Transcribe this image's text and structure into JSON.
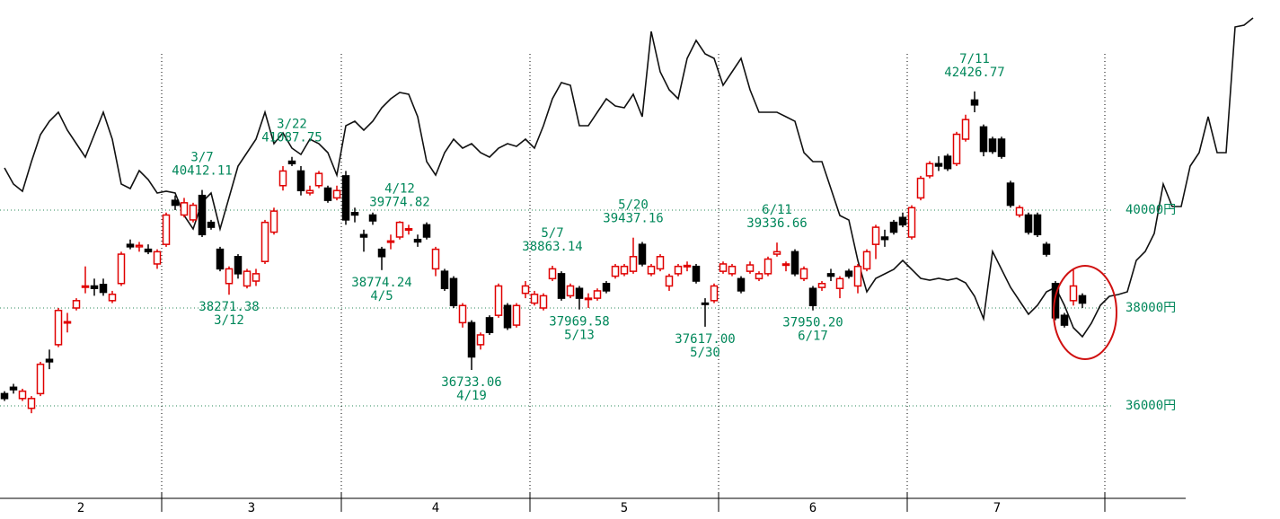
{
  "chart_data": {
    "type": "candlestick",
    "ylim": [
      34110,
      44294
    ],
    "yticks": [
      {
        "value": 36000,
        "label": "36000円"
      },
      {
        "value": 38000,
        "label": "38000円"
      },
      {
        "value": 40000,
        "label": "40000円"
      }
    ],
    "grid": true,
    "colors": {
      "up": "#e00000",
      "down": "#000000",
      "line": "#111111",
      "annotation": "#00875a",
      "grid": "#2a8a5a"
    },
    "months": [
      {
        "label": "2",
        "open": [
          36250,
          36380,
          36150,
          35950,
          36250,
          36950,
          37250,
          37700,
          38000,
          38450,
          38450,
          38480,
          38150,
          38500,
          39300,
          39250,
          39200,
          38900
        ],
        "high": [
          36300,
          36450,
          36350,
          36200,
          36900,
          37150,
          38000,
          37900,
          38200,
          38850,
          38600,
          38600,
          38350,
          39150,
          39400,
          39350,
          39300,
          39200
        ],
        "low": [
          36100,
          36250,
          36100,
          35850,
          36200,
          36750,
          37200,
          37500,
          37950,
          38300,
          38250,
          38250,
          38100,
          38450,
          39200,
          39150,
          39100,
          38800
        ],
        "close": [
          36150,
          36330,
          36300,
          36150,
          36850,
          36900,
          37950,
          37720,
          38150,
          38450,
          38400,
          38320,
          38280,
          39100,
          39250,
          39280,
          39150,
          39150
        ]
      },
      {
        "label": "3",
        "open": [
          39300,
          40200,
          39900,
          39800,
          40300,
          39750,
          39200,
          38500,
          39050,
          38450,
          38550,
          38950,
          39550,
          40500,
          41000,
          40800,
          40350,
          40500,
          40450,
          40250
        ],
        "high": [
          39950,
          40300,
          40250,
          40150,
          40412.11,
          39800,
          39250,
          38850,
          39100,
          38800,
          38800,
          39800,
          40050,
          40900,
          41087.75,
          40900,
          40500,
          40800,
          40500,
          40500
        ],
        "low": [
          39250,
          40000,
          39850,
          39750,
          39450,
          39600,
          38750,
          38271.38,
          38600,
          38400,
          38450,
          38900,
          39500,
          40400,
          40900,
          40300,
          40300,
          40450,
          40150,
          40200
        ],
        "close": [
          39900,
          40100,
          40150,
          40100,
          39500,
          39650,
          38800,
          38800,
          38700,
          38750,
          38700,
          39750,
          39980,
          40800,
          40950,
          40400,
          40400,
          40750,
          40200,
          40400
        ]
      },
      {
        "label": "4",
        "open": [
          40700,
          39950,
          39500,
          39900,
          39200,
          39350,
          39450,
          39600,
          39400,
          39700,
          38800,
          38750,
          38600,
          37700,
          37700,
          37250,
          37800,
          37850,
          38050,
          37650,
          38300
        ],
        "high": [
          40800,
          40050,
          39600,
          39950,
          39250,
          39500,
          39774.82,
          39700,
          39500,
          39750,
          39250,
          38800,
          38650,
          38100,
          37750,
          37500,
          37850,
          38500,
          38100,
          38100,
          38550
        ],
        "low": [
          39700,
          39750,
          39150,
          39700,
          38774.24,
          39200,
          39400,
          39500,
          39250,
          39400,
          38650,
          38350,
          38000,
          37600,
          36733.06,
          37150,
          37450,
          37800,
          37550,
          37600,
          38200
        ],
        "close": [
          39800,
          39900,
          39450,
          39780,
          39050,
          39370,
          39750,
          39620,
          39350,
          39450,
          39200,
          38400,
          38050,
          38050,
          37000,
          37450,
          37500,
          38450,
          37600,
          38050,
          38450
        ]
      },
      {
        "label": "5",
        "open": [
          38100,
          38000,
          38600,
          38700,
          38250,
          38400,
          38180,
          38200,
          38500,
          38650,
          38700,
          38750,
          39300,
          38700,
          38800,
          38450,
          38700,
          38850,
          38850,
          38100,
          38150
        ],
        "high": [
          38350,
          38300,
          38863.14,
          38750,
          38500,
          38450,
          38300,
          38400,
          38550,
          38900,
          38900,
          39437.16,
          39350,
          38900,
          39100,
          38700,
          38900,
          38950,
          38900,
          38200,
          38500
        ],
        "low": [
          38050,
          37950,
          38550,
          38150,
          38200,
          37969.58,
          38000,
          38150,
          38300,
          38600,
          38650,
          38700,
          38850,
          38650,
          38750,
          38350,
          38650,
          38750,
          38500,
          37617,
          38100
        ],
        "close": [
          38280,
          38250,
          38800,
          38200,
          38450,
          38200,
          38200,
          38350,
          38350,
          38850,
          38850,
          39050,
          38900,
          38850,
          39050,
          38650,
          38850,
          38870,
          38550,
          38080,
          38450
        ]
      },
      {
        "label": "6",
        "open": [
          38750,
          38700,
          38600,
          38750,
          38600,
          38700,
          39100,
          38880,
          39150,
          38600,
          38400,
          38420,
          38700,
          38400,
          38750,
          38450,
          38800,
          39300,
          39450,
          39750,
          39850
        ],
        "high": [
          38950,
          38900,
          38650,
          38950,
          38750,
          39050,
          39336.66,
          38950,
          39200,
          38850,
          38450,
          38550,
          38800,
          38650,
          38800,
          38900,
          39200,
          39700,
          39600,
          39800,
          39950
        ],
        "low": [
          38700,
          38650,
          38300,
          38700,
          38550,
          38650,
          39050,
          38750,
          38650,
          38550,
          37950.2,
          38350,
          38550,
          38200,
          38600,
          38300,
          38750,
          39000,
          39250,
          39500,
          39650
        ],
        "close": [
          38900,
          38850,
          38350,
          38880,
          38700,
          39000,
          39150,
          38900,
          38700,
          38800,
          38050,
          38500,
          38650,
          38600,
          38650,
          38850,
          39150,
          39650,
          39400,
          39550,
          39700
        ]
      },
      {
        "label": "7",
        "open": [
          39450,
          40250,
          40700,
          40950,
          41100,
          40950,
          41450,
          42250,
          41700,
          41450,
          41450,
          40550,
          39900,
          39900,
          39900,
          39300,
          38500,
          37850,
          38150,
          38250
        ],
        "high": [
          40100,
          40700,
          41000,
          41100,
          41150,
          41600,
          41950,
          42426.77,
          41750,
          41500,
          41500,
          40600,
          40100,
          39950,
          39950,
          39350,
          38550,
          37900,
          38800,
          38300
        ],
        "low": [
          39400,
          40200,
          40650,
          40800,
          40800,
          40900,
          41400,
          42000,
          41100,
          41150,
          41050,
          40050,
          39850,
          39500,
          39450,
          39050,
          37750,
          37600,
          38050,
          38000
        ],
        "close": [
          40050,
          40650,
          40950,
          40900,
          40850,
          41550,
          41850,
          42150,
          41200,
          41200,
          41100,
          40100,
          40050,
          39550,
          39500,
          39100,
          37800,
          37650,
          38450,
          38100
        ]
      }
    ],
    "line": {
      "values": [
        40863,
        40532,
        40386,
        40991,
        41542,
        41817,
        42000,
        41633,
        41358,
        41083,
        41542,
        42000,
        41450,
        40532,
        40441,
        40808,
        40624,
        40349,
        40386,
        40349,
        39890,
        39615,
        40165,
        40349,
        39615,
        40257,
        40899,
        41175,
        41450,
        42000,
        41358,
        41578,
        41266,
        41138,
        41450,
        41358,
        41175,
        40716,
        41725,
        41817,
        41633,
        41817,
        42092,
        42276,
        42404,
        42367,
        41909,
        40991,
        40716,
        41175,
        41450,
        41266,
        41358,
        41175,
        41083,
        41266,
        41358,
        41303,
        41450,
        41266,
        41725,
        42276,
        42606,
        42551,
        41725,
        41725,
        42000,
        42276,
        42129,
        42092,
        42367,
        41909,
        43652,
        42826,
        42459,
        42276,
        43101,
        43468,
        43193,
        43101,
        42551,
        42826,
        43101,
        42459,
        42000,
        42000,
        42000,
        41909,
        41817,
        41175,
        40991,
        40991,
        40441,
        39890,
        39798,
        38973,
        38330,
        38606,
        38697,
        38789,
        38973,
        38789,
        38606,
        38569,
        38606,
        38569,
        38606,
        38514,
        38239,
        37780,
        39156,
        38789,
        38422,
        38147,
        37872,
        38055,
        38330,
        38422,
        38055,
        37596,
        37413,
        37688,
        38055,
        38239,
        38275,
        38330,
        38973,
        39156,
        39523,
        40532,
        40074,
        40074,
        40899,
        41175,
        41909,
        41175,
        41175,
        43744,
        43780,
        43927
      ]
    },
    "annotations": [
      {
        "date": "3/7",
        "value": 40412.11
      },
      {
        "date": "3/12",
        "value": 38271.38
      },
      {
        "date": "3/22",
        "value": 41087.75
      },
      {
        "date": "4/5",
        "value": 38774.24
      },
      {
        "date": "4/12",
        "value": 39774.82
      },
      {
        "date": "4/19",
        "value": 36733.06
      },
      {
        "date": "5/7",
        "value": 38863.14
      },
      {
        "date": "5/13",
        "value": 37969.58
      },
      {
        "date": "5/20",
        "value": 39437.16
      },
      {
        "date": "5/30",
        "value": 37617,
        "label": "37617.00"
      },
      {
        "date": "6/11",
        "value": 39336.66
      },
      {
        "date": "6/17",
        "value": 37950.2,
        "label": "37950.20"
      },
      {
        "date": "7/11",
        "value": 42426.77
      }
    ]
  }
}
